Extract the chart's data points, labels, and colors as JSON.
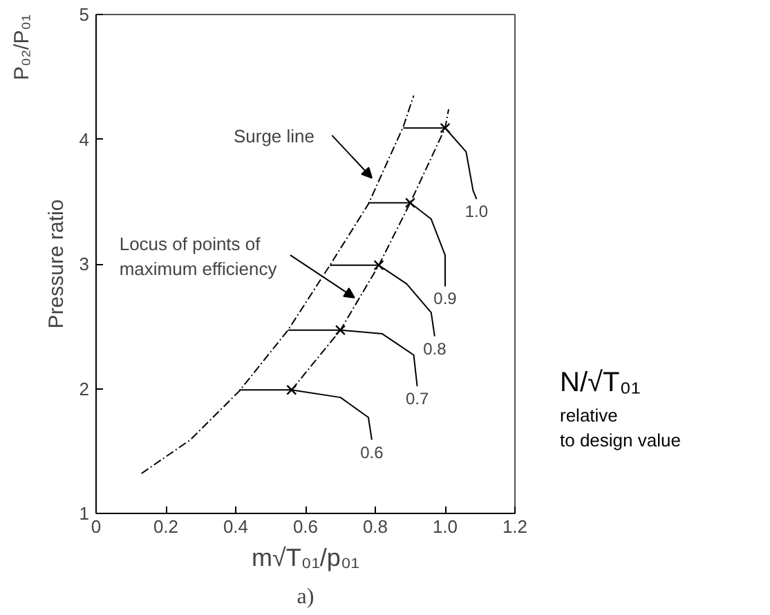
{
  "chart_data": {
    "type": "line",
    "ylabel": "Pressure ratio",
    "xlabel": "m√T₀₁/p₀₁",
    "xlim": [
      0,
      1.2
    ],
    "xticks": [
      0,
      0.2,
      0.4,
      0.6,
      0.8,
      {
        "value": 1,
        "label": "1.0"
      },
      1.2
    ],
    "ylim": [
      1,
      5
    ],
    "yticks": [
      1,
      2,
      3,
      4,
      5
    ],
    "grid": false,
    "series": [
      {
        "x": [
          0.13,
          0.27,
          0.41,
          0.55,
          0.67,
          0.78,
          0.88,
          0.91
        ],
        "values": [
          1.32,
          1.59,
          1.98,
          2.47,
          2.99,
          3.48,
          4.1,
          4.35
        ],
        "color": "#000000",
        "line_style": "dashed"
      },
      {
        "x": [
          0.56,
          0.7,
          0.81,
          0.9,
          1.0,
          1.01
        ],
        "values": [
          1.99,
          2.47,
          2.99,
          3.49,
          4.09,
          4.24
        ],
        "color": "#000000",
        "line_style": "dashed"
      },
      {
        "name": "1.0",
        "x": [
          0.88,
          1.0,
          1.06,
          1.08,
          1.09
        ],
        "values": [
          4.09,
          4.09,
          3.9,
          3.59,
          3.52
        ],
        "color": "#000000",
        "line_style": "solid"
      },
      {
        "name": "0.9",
        "x": [
          0.78,
          0.9,
          0.96,
          1.0,
          1.0
        ],
        "values": [
          3.49,
          3.49,
          3.36,
          3.07,
          2.82
        ],
        "color": "#000000",
        "line_style": "solid"
      },
      {
        "name": "0.8",
        "x": [
          0.67,
          0.81,
          0.89,
          0.96,
          0.97
        ],
        "values": [
          2.99,
          2.99,
          2.84,
          2.61,
          2.42
        ],
        "color": "#000000",
        "line_style": "solid"
      },
      {
        "name": "0.7",
        "x": [
          0.55,
          0.7,
          0.82,
          0.91,
          0.92
        ],
        "values": [
          2.47,
          2.47,
          2.44,
          2.27,
          2.02
        ],
        "color": "#000000",
        "line_style": "solid"
      },
      {
        "name": "0.6",
        "x": [
          0.41,
          0.56,
          0.7,
          0.78,
          0.79
        ],
        "values": [
          1.99,
          1.99,
          1.93,
          1.77,
          1.59
        ],
        "color": "#000000",
        "line_style": "solid"
      },
      {
        "type": "scatter",
        "marker": "cross",
        "x": [
          0.56,
          0.7,
          0.81,
          0.9,
          1.0
        ],
        "values": [
          1.99,
          2.47,
          2.99,
          3.49,
          4.09
        ],
        "color": "#000000"
      }
    ],
    "annotations": [
      {
        "text": "Surge line",
        "x": 0.79,
        "y": 3.69
      },
      {
        "text": "Locus of points of\nmaximum efficiency",
        "x": 0.74,
        "y": 2.73
      },
      "P₀₂/P₀₁",
      "N/√T₀₁",
      "relative\nto design value",
      "a)"
    ]
  }
}
